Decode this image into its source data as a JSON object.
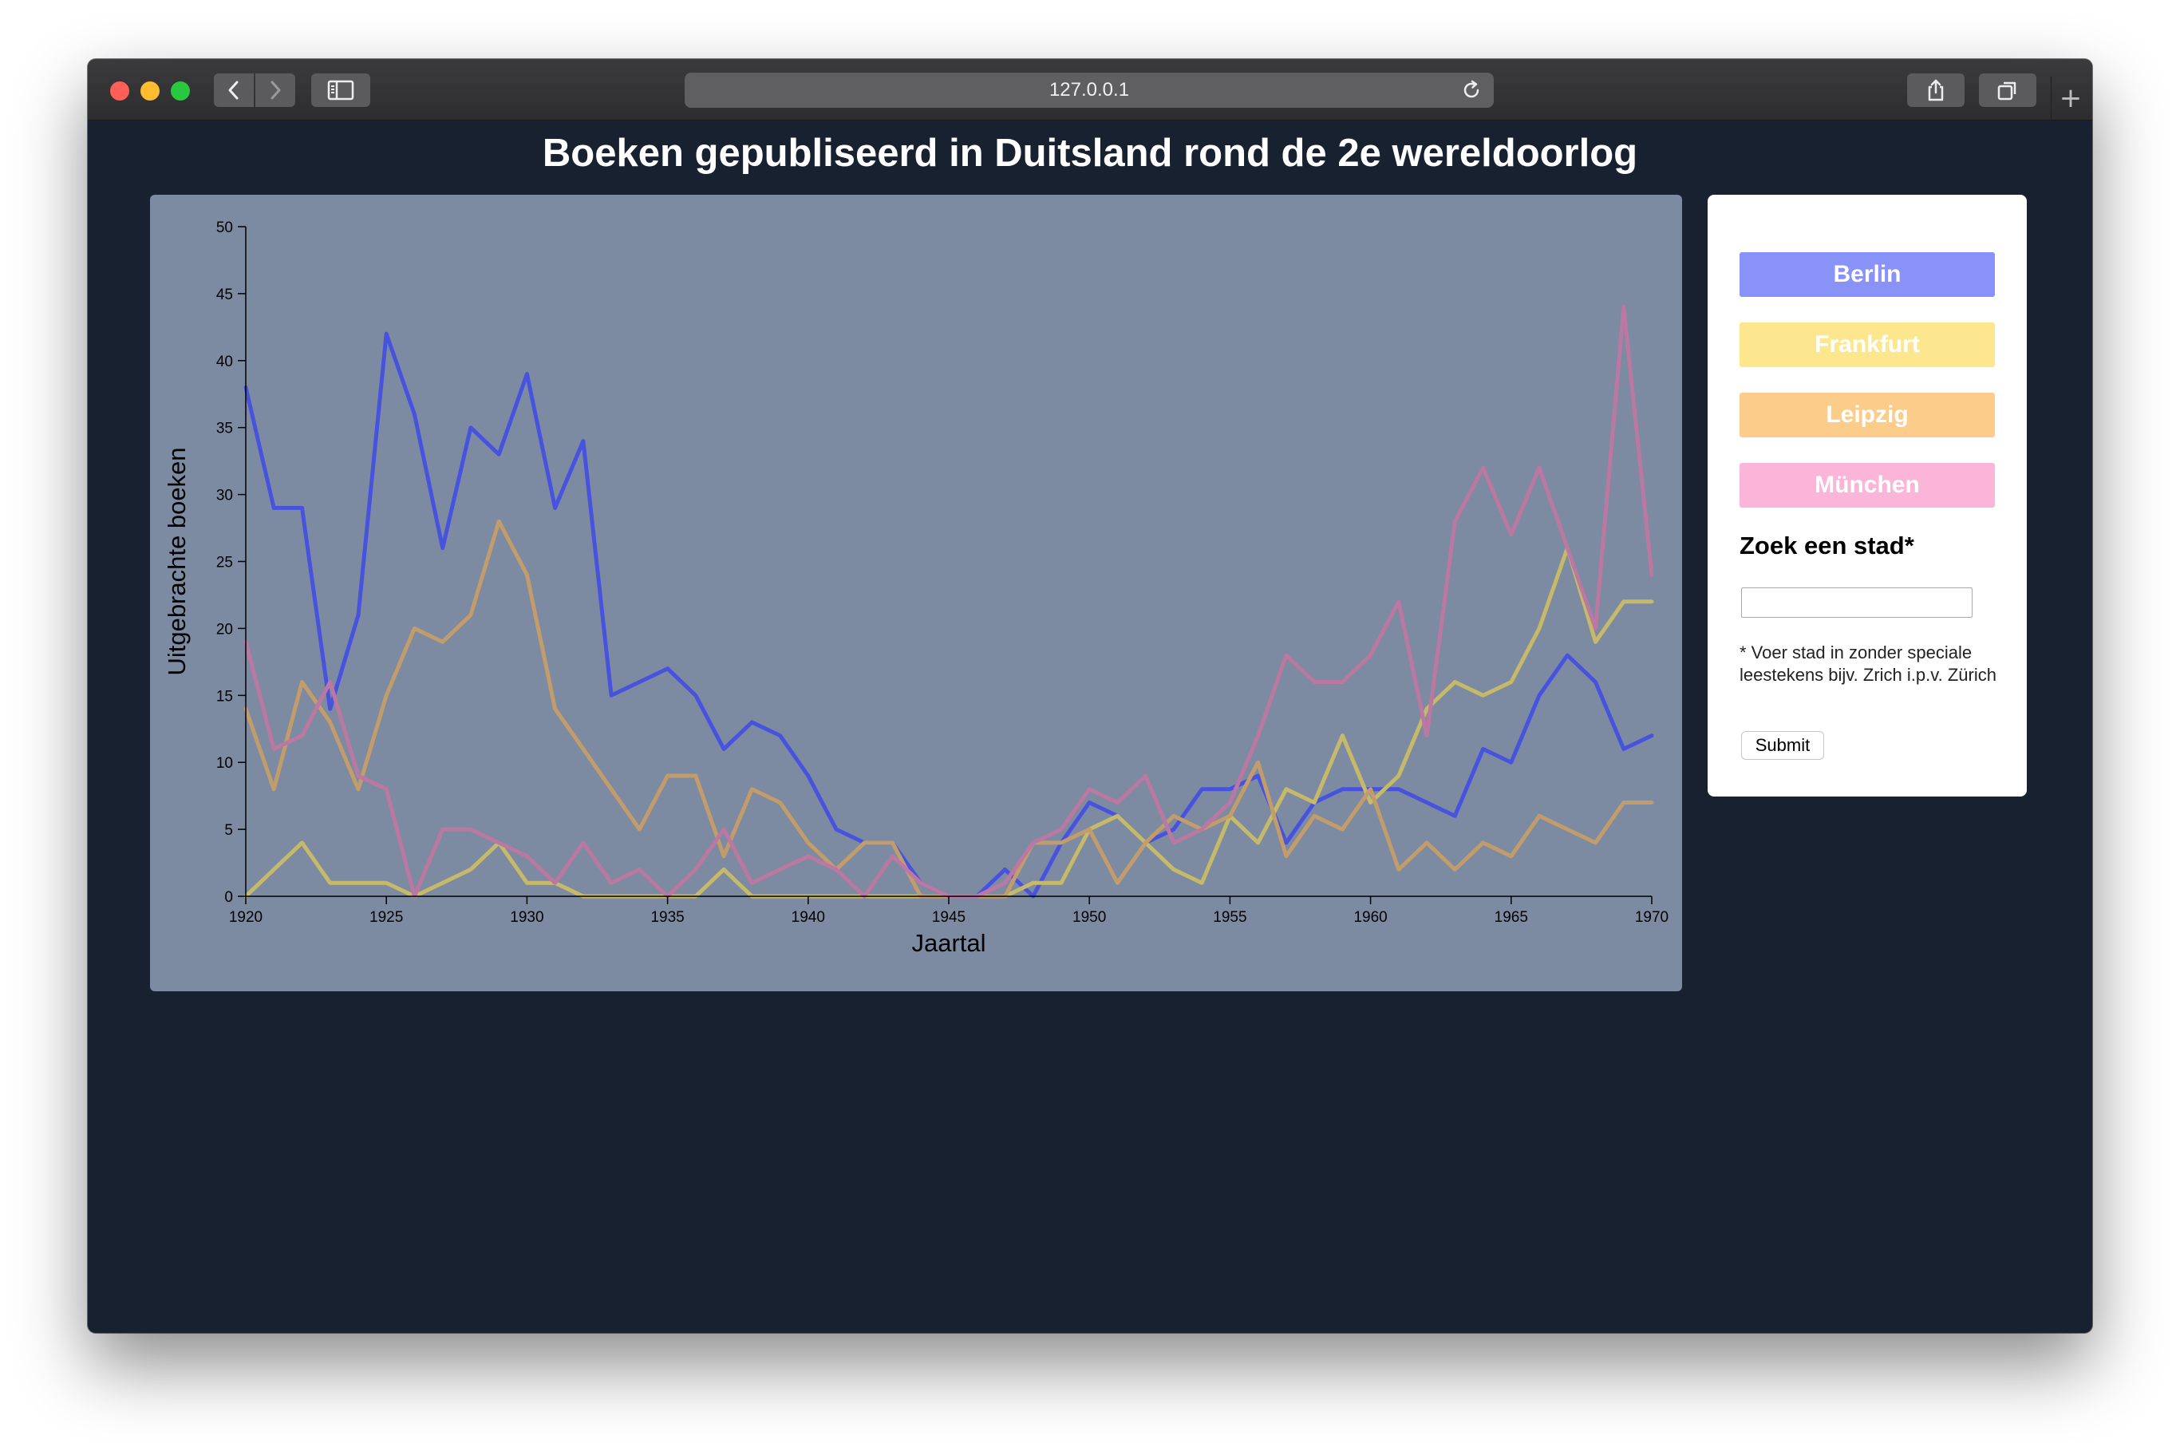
{
  "browser": {
    "url": "127.0.0.1"
  },
  "page": {
    "title": "Boeken gepubliseerd in Duitsland rond de 2e wereldoorlog"
  },
  "sidebar": {
    "cities": [
      {
        "label": "Berlin",
        "color": "#8892f7"
      },
      {
        "label": "Frankfurt",
        "color": "#fde78e"
      },
      {
        "label": "Leipzig",
        "color": "#fbcc8a"
      },
      {
        "label": "München",
        "color": "#fbb5d8"
      }
    ],
    "search_heading": "Zoek een stad*",
    "search_placeholder": "",
    "note": "* Voer stad in zonder speciale leestekens bijv. Zrich i.p.v. Zürich",
    "submit_label": "Submit"
  },
  "chart_data": {
    "type": "line",
    "title": "",
    "xlabel": "Jaartal",
    "ylabel": "Uitgebrachte boeken",
    "xlim": [
      1920,
      1970
    ],
    "ylim": [
      0,
      50
    ],
    "xticks": [
      "1920",
      "1925",
      "1930",
      "1935",
      "1940",
      "1945",
      "1950",
      "1955",
      "1960",
      "1965",
      "1970"
    ],
    "yticks": [
      "0",
      "5",
      "10",
      "15",
      "20",
      "25",
      "30",
      "35",
      "40",
      "45",
      "50"
    ],
    "grid": false,
    "legend": "none",
    "x": [
      1920,
      1921,
      1922,
      1923,
      1924,
      1925,
      1926,
      1927,
      1928,
      1929,
      1930,
      1931,
      1932,
      1933,
      1934,
      1935,
      1936,
      1937,
      1938,
      1939,
      1940,
      1941,
      1942,
      1943,
      1944,
      1945,
      1946,
      1947,
      1948,
      1949,
      1950,
      1951,
      1952,
      1953,
      1954,
      1955,
      1956,
      1957,
      1958,
      1959,
      1960,
      1961,
      1962,
      1963,
      1964,
      1965,
      1966,
      1967,
      1968,
      1969,
      1970
    ],
    "series": [
      {
        "name": "Berlin",
        "color": "#4753de",
        "values": [
          38,
          29,
          29,
          14,
          21,
          42,
          36,
          26,
          35,
          33,
          39,
          29,
          34,
          15,
          16,
          17,
          15,
          11,
          13,
          12,
          9,
          5,
          4,
          4,
          1,
          0,
          0,
          2,
          0,
          4,
          7,
          6,
          4,
          5,
          8,
          8,
          9,
          4,
          7,
          8,
          8,
          8,
          7,
          6,
          11,
          10,
          15,
          18,
          16,
          11,
          12
        ]
      },
      {
        "name": "Frankfurt",
        "color": "#c6b96a",
        "values": [
          0,
          2,
          4,
          1,
          1,
          1,
          0,
          1,
          2,
          4,
          1,
          1,
          0,
          0,
          0,
          0,
          0,
          2,
          0,
          0,
          0,
          0,
          0,
          0,
          0,
          0,
          0,
          0,
          1,
          1,
          5,
          6,
          4,
          2,
          1,
          6,
          4,
          8,
          7,
          12,
          7,
          9,
          14,
          16,
          15,
          16,
          20,
          26,
          19,
          22,
          22
        ]
      },
      {
        "name": "Leipzig",
        "color": "#c39c6c",
        "values": [
          14,
          8,
          16,
          13,
          8,
          15,
          20,
          19,
          21,
          28,
          24,
          14,
          11,
          8,
          5,
          9,
          9,
          3,
          8,
          7,
          4,
          2,
          4,
          4,
          0,
          0,
          0,
          0,
          4,
          4,
          5,
          1,
          4,
          6,
          5,
          6,
          10,
          3,
          6,
          5,
          8,
          2,
          4,
          2,
          4,
          3,
          6,
          5,
          4,
          7,
          7
        ]
      },
      {
        "name": "München",
        "color": "#bb78a2",
        "values": [
          19,
          11,
          12,
          16,
          9,
          8,
          0,
          5,
          5,
          4,
          3,
          1,
          4,
          1,
          2,
          0,
          2,
          5,
          1,
          2,
          3,
          2,
          0,
          3,
          1,
          0,
          0,
          1,
          4,
          5,
          8,
          7,
          9,
          4,
          5,
          7,
          12,
          18,
          16,
          16,
          18,
          22,
          12,
          28,
          32,
          27,
          32,
          26,
          20,
          44,
          24
        ]
      }
    ]
  }
}
